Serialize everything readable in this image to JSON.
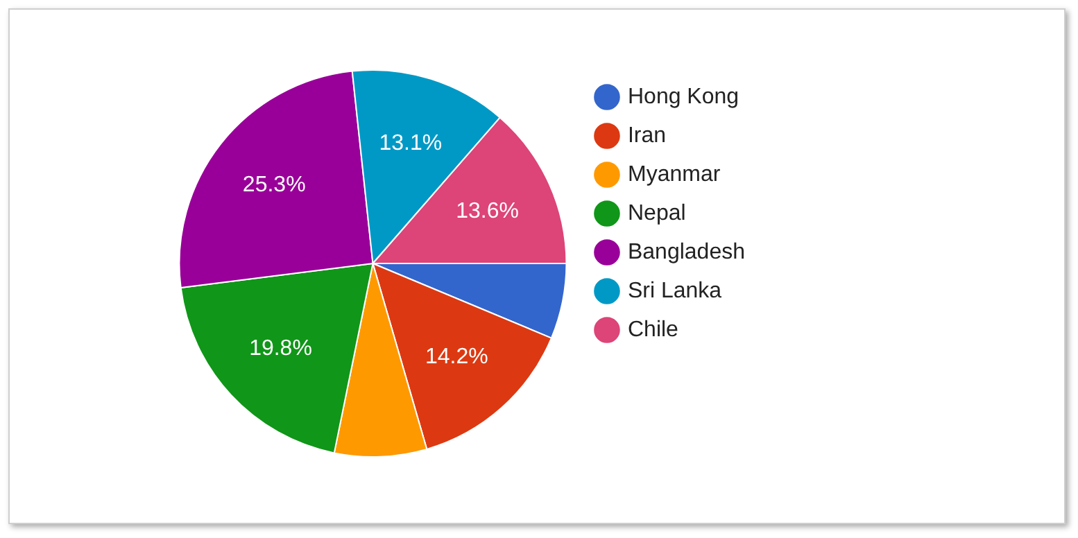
{
  "chart_data": {
    "type": "pie",
    "categories": [
      "Hong Kong",
      "Iran",
      "Myanmar",
      "Nepal",
      "Bangladesh",
      "Sri Lanka",
      "Chile"
    ],
    "values": [
      6.3,
      14.2,
      7.7,
      19.8,
      25.3,
      13.1,
      13.6
    ],
    "value_labels": [
      null,
      "14.2%",
      null,
      "19.8%",
      "25.3%",
      "13.1%",
      "13.6%"
    ],
    "colors": [
      "#3366cc",
      "#dc3912",
      "#ff9900",
      "#109618",
      "#990099",
      "#0099c6",
      "#dd4477"
    ],
    "legend": "right"
  }
}
